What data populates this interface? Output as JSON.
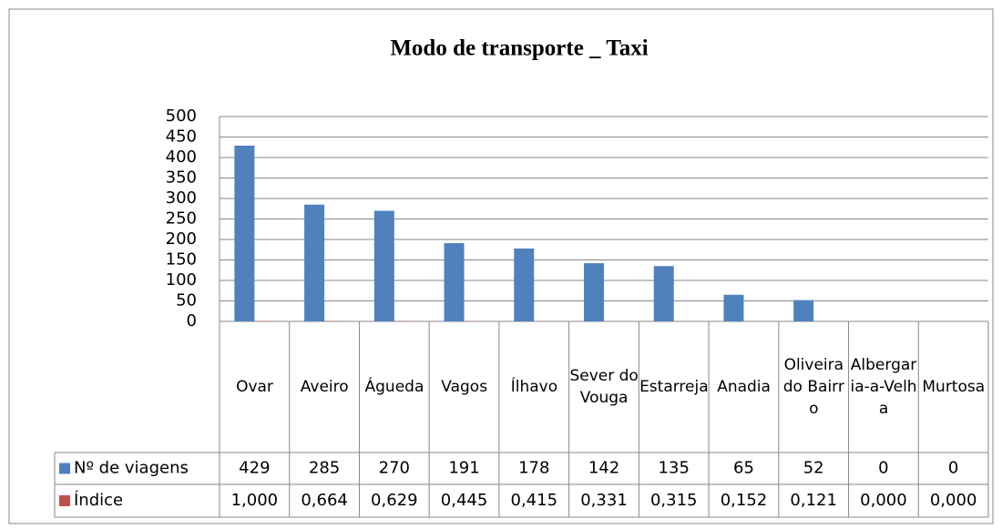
{
  "chart_data": {
    "type": "bar",
    "title": "Modo de transporte _ Taxi",
    "categories": [
      "Ovar",
      "Aveiro",
      "Águeda",
      "Vagos",
      "Ílhavo",
      "Sever do Vouga",
      "Estarreja",
      "Anadia",
      "Oliveira do Bairro",
      "Albergaria-a-Velha",
      "Murtosa"
    ],
    "series": [
      {
        "name": "Nº de viagens",
        "color": "#4f81bd",
        "values": [
          429,
          285,
          270,
          191,
          178,
          142,
          135,
          65,
          52,
          0,
          0
        ]
      },
      {
        "name": "Índice",
        "color": "#c0504d",
        "values": [
          1.0,
          0.664,
          0.629,
          0.445,
          0.415,
          0.331,
          0.315,
          0.152,
          0.121,
          0.0,
          0.0
        ],
        "value_labels": [
          "1,000",
          "0,664",
          "0,629",
          "0,445",
          "0,415",
          "0,331",
          "0,315",
          "0,152",
          "0,121",
          "0,000",
          "0,000"
        ]
      }
    ],
    "ylim": [
      0,
      500
    ],
    "yticks": [
      0,
      50,
      100,
      150,
      200,
      250,
      300,
      350,
      400,
      450,
      500
    ],
    "grid": true
  }
}
